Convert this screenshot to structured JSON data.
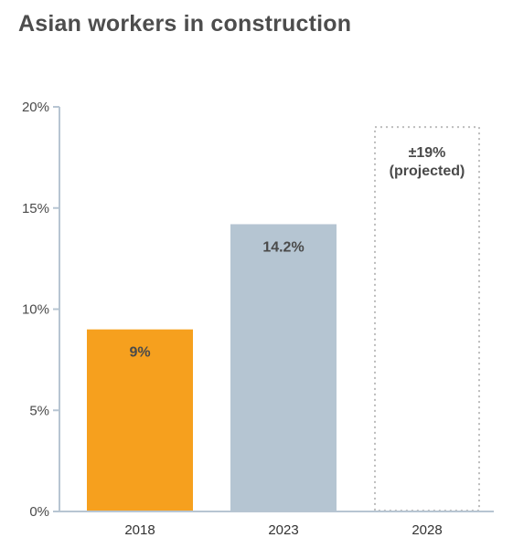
{
  "title": "Asian workers in construction",
  "colors": {
    "axis": "#b7c5d2",
    "bar_2018": "#f6a01e",
    "bar_2023": "#b5c5d2",
    "projected_outline": "#bdbdbd",
    "label_text": "#4a4a4a"
  },
  "chart_data": {
    "type": "bar",
    "title": "Asian workers in construction",
    "xlabel": "",
    "ylabel": "",
    "ylim": [
      0,
      20
    ],
    "y_ticks": [
      0,
      5,
      10,
      15,
      20
    ],
    "y_tick_labels": [
      "0%",
      "5%",
      "10%",
      "15%",
      "20%"
    ],
    "categories": [
      "2018",
      "2023",
      "2028"
    ],
    "values": [
      9,
      14.2,
      19
    ],
    "data_labels": [
      "9%",
      "14.2%",
      "±19%"
    ],
    "projected_note": "(projected)",
    "styles": [
      "solid",
      "solid",
      "dotted-projected"
    ],
    "grid": false,
    "legend": "none"
  }
}
